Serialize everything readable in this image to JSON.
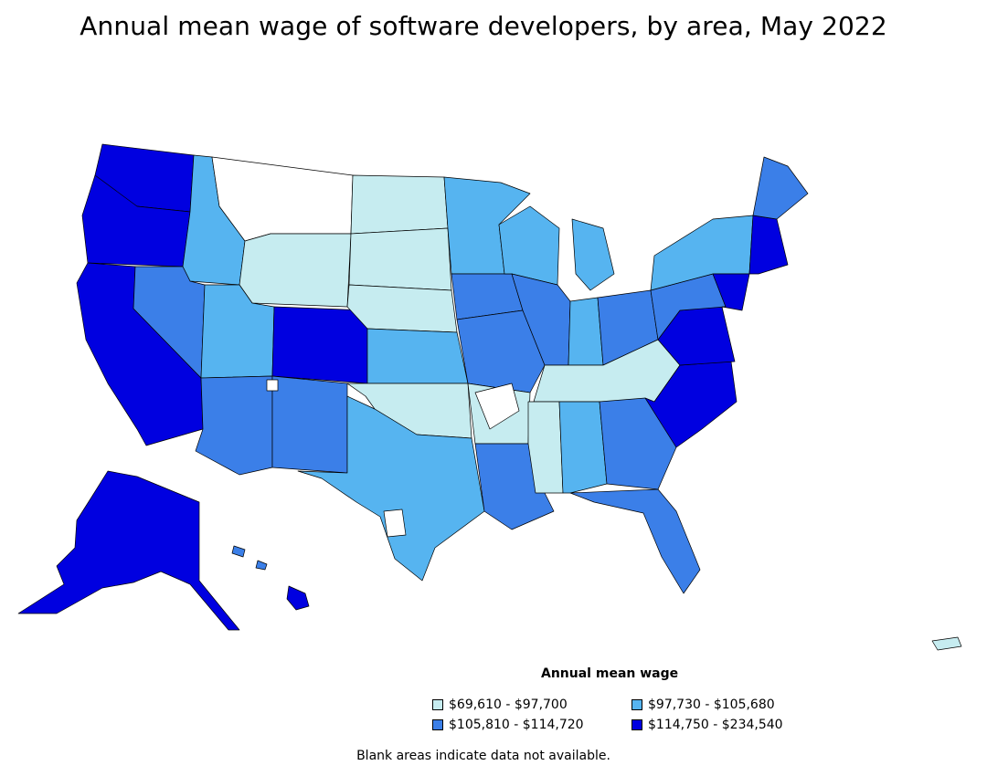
{
  "title": "Annual mean wage of software developers, by area, May 2022",
  "legend": {
    "title": "Annual mean wage",
    "items": [
      {
        "label": "$69,610 - $97,700",
        "color": "#c6ecf0"
      },
      {
        "label": "$97,730 - $105,680",
        "color": "#56b4f0"
      },
      {
        "label": "$105,810 - $114,720",
        "color": "#3b7fe8"
      },
      {
        "label": "$114,750 - $234,540",
        "color": "#0000e0"
      }
    ]
  },
  "note": "Blank areas indicate data not available."
}
